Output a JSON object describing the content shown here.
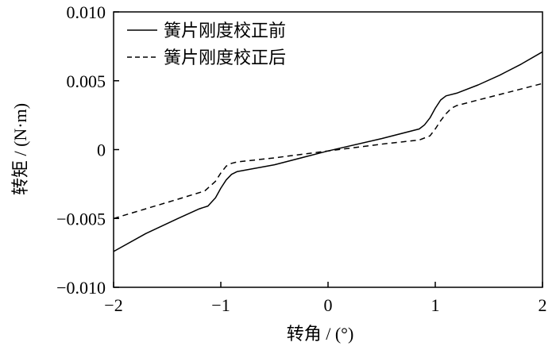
{
  "chart_data": {
    "type": "line",
    "xlabel": "转角 / (°)",
    "ylabel": "转矩 / (N·m)",
    "xlim": [
      -2,
      2
    ],
    "ylim": [
      -0.01,
      0.01
    ],
    "x_ticks": [
      -2,
      -1,
      0,
      1,
      2
    ],
    "x_tick_labels": [
      "−2",
      "−1",
      "0",
      "1",
      "2"
    ],
    "y_ticks": [
      -0.01,
      -0.005,
      0,
      0.005,
      0.01
    ],
    "y_tick_labels": [
      "−0.010",
      "−0.005",
      "0",
      "0.005",
      "0.010"
    ],
    "grid": false,
    "legend_position": "top-left",
    "series": [
      {
        "name": "簧片刚度校正前",
        "style": "solid",
        "color": "#000000",
        "x": [
          -2.0,
          -1.7,
          -1.4,
          -1.2,
          -1.12,
          -1.05,
          -1.0,
          -0.95,
          -0.9,
          -0.85,
          -0.5,
          0,
          0.5,
          0.85,
          0.9,
          0.95,
          1.0,
          1.05,
          1.1,
          1.2,
          1.4,
          1.6,
          1.8,
          2.0
        ],
        "y": [
          -0.0074,
          -0.0061,
          -0.005,
          -0.0043,
          -0.0041,
          -0.0035,
          -0.0028,
          -0.0022,
          -0.0018,
          -0.0016,
          -0.0011,
          -0.0001,
          0.0008,
          0.0015,
          0.0018,
          0.0023,
          0.003,
          0.0036,
          0.0039,
          0.0041,
          0.0047,
          0.0054,
          0.0062,
          0.0071
        ]
      },
      {
        "name": "簧片刚度校正后",
        "style": "dashed",
        "color": "#000000",
        "x": [
          -2.0,
          -1.7,
          -1.4,
          -1.15,
          -1.05,
          -1.0,
          -0.95,
          -0.9,
          -0.85,
          -0.5,
          0,
          0.5,
          0.85,
          0.95,
          1.0,
          1.05,
          1.1,
          1.15,
          1.2,
          1.4,
          1.6,
          1.8,
          2.0
        ],
        "y": [
          -0.005,
          -0.0043,
          -0.0036,
          -0.003,
          -0.0023,
          -0.0017,
          -0.0012,
          -0.001,
          -0.0009,
          -0.0006,
          -0.0001,
          0.0004,
          0.0007,
          0.001,
          0.0015,
          0.0021,
          0.0026,
          0.003,
          0.0032,
          0.0036,
          0.004,
          0.0044,
          0.0048
        ]
      }
    ]
  }
}
